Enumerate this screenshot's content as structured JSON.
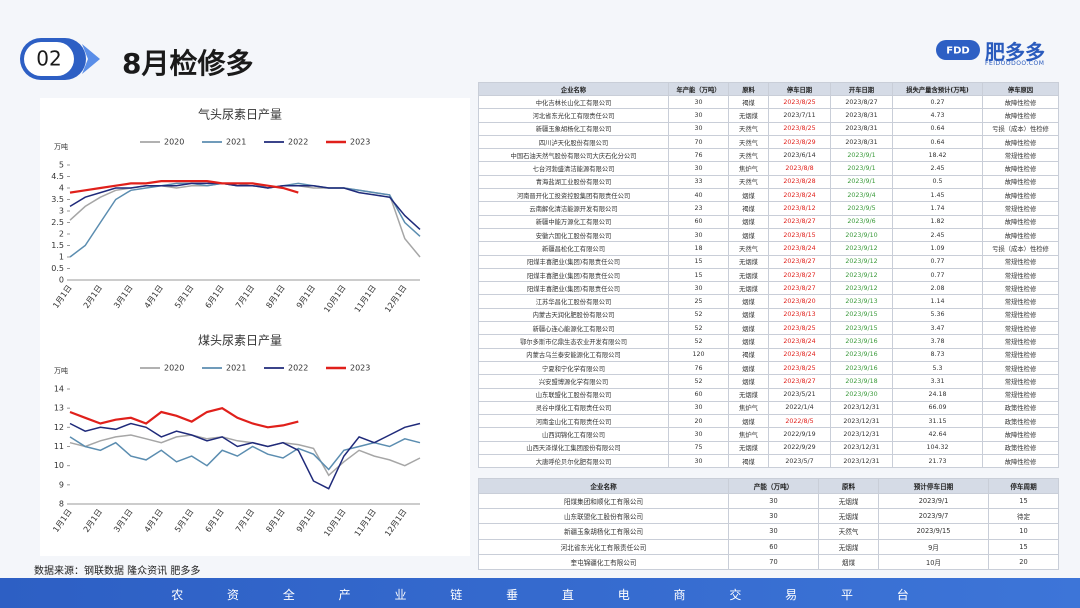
{
  "header": {
    "number": "02",
    "title": "8月检修多",
    "logo": "肥多多",
    "logo_sub": "FEIDOODOO.COM",
    "logo_mark": "FDD"
  },
  "chart_data": [
    {
      "type": "line",
      "title": "气头尿素日产量",
      "ylabel": "万吨",
      "categories": [
        "1月1日",
        null,
        "2月1日",
        null,
        "3月1日",
        null,
        "4月1日",
        null,
        "5月1日",
        null,
        "6月1日",
        null,
        "7月1日",
        null,
        "8月1日",
        null,
        "9月1日",
        null,
        "10月1日",
        null,
        "11月1日",
        null,
        "12月1日",
        null
      ],
      "series": [
        {
          "name": "2020",
          "color": "#a6a6a6",
          "values": [
            2.6,
            3.2,
            3.6,
            3.9,
            4.0,
            4.1,
            4.1,
            4.0,
            4.1,
            4.1,
            4.2,
            4.1,
            4.1,
            4.0,
            4.1,
            4.1,
            4.0,
            4.0,
            4.0,
            3.9,
            3.8,
            3.7,
            1.8,
            1.0
          ]
        },
        {
          "name": "2021",
          "color": "#5b8db0",
          "values": [
            1.0,
            1.5,
            2.5,
            3.5,
            3.9,
            4.0,
            4.1,
            4.2,
            4.2,
            4.1,
            4.2,
            4.1,
            4.2,
            4.0,
            4.1,
            4.2,
            4.1,
            4.0,
            4.0,
            3.9,
            3.8,
            3.7,
            2.5,
            1.9
          ]
        },
        {
          "name": "2022",
          "color": "#1f2a7a",
          "values": [
            3.2,
            3.6,
            3.8,
            4.0,
            4.0,
            4.1,
            4.1,
            4.1,
            4.2,
            4.2,
            4.2,
            4.1,
            4.1,
            4.0,
            4.1,
            4.1,
            4.1,
            4.0,
            4.0,
            3.8,
            3.7,
            3.6,
            2.8,
            2.2
          ]
        },
        {
          "name": "2023",
          "color": "#e0201b",
          "values": [
            3.8,
            3.9,
            4.0,
            4.1,
            4.2,
            4.2,
            4.3,
            4.3,
            4.3,
            4.3,
            4.2,
            4.2,
            4.2,
            4.1,
            4.0,
            3.8,
            null,
            null,
            null,
            null,
            null,
            null,
            null,
            null
          ]
        }
      ],
      "ylim": [
        0,
        5
      ],
      "yticks": [
        0,
        0.5,
        1,
        1.5,
        2,
        2.5,
        3,
        3.5,
        4,
        4.5,
        5
      ]
    },
    {
      "type": "line",
      "title": "煤头尿素日产量",
      "ylabel": "万吨",
      "categories": [
        "1月1日",
        null,
        "2月1日",
        null,
        "3月1日",
        null,
        "4月1日",
        null,
        "5月1日",
        null,
        "6月1日",
        null,
        "7月1日",
        null,
        "8月1日",
        null,
        "9月1日",
        null,
        "10月1日",
        null,
        "11月1日",
        null,
        "12月1日",
        null
      ],
      "series": [
        {
          "name": "2020",
          "color": "#a6a6a6",
          "values": [
            11.2,
            11.0,
            11.3,
            11.5,
            11.6,
            11.4,
            11.2,
            11.5,
            11.6,
            11.4,
            11.5,
            11.3,
            11.2,
            11.0,
            11.2,
            11.1,
            10.9,
            9.5,
            10.2,
            10.8,
            10.5,
            10.3,
            10.0,
            10.4
          ]
        },
        {
          "name": "2021",
          "color": "#5b8db0",
          "values": [
            11.5,
            11.0,
            10.8,
            11.2,
            10.5,
            10.3,
            10.8,
            10.2,
            10.5,
            10.0,
            10.8,
            10.5,
            11.0,
            10.6,
            10.4,
            10.9,
            10.6,
            9.8,
            10.8,
            11.0,
            11.2,
            11.0,
            11.4,
            11.2
          ]
        },
        {
          "name": "2022",
          "color": "#1f2a7a",
          "values": [
            12.2,
            11.8,
            12.0,
            11.9,
            12.2,
            12.0,
            11.5,
            11.8,
            11.6,
            11.3,
            11.5,
            11.0,
            11.2,
            11.0,
            11.2,
            10.8,
            9.2,
            8.8,
            10.5,
            11.5,
            11.2,
            11.6,
            12.0,
            12.2
          ]
        },
        {
          "name": "2023",
          "color": "#e0201b",
          "values": [
            12.8,
            12.5,
            12.2,
            12.4,
            12.5,
            12.2,
            12.8,
            12.6,
            12.3,
            12.8,
            13.0,
            12.5,
            12.2,
            12.0,
            12.1,
            12.3,
            null,
            null,
            null,
            null,
            null,
            null,
            null,
            null
          ]
        }
      ],
      "ylim": [
        8,
        14
      ],
      "yticks": [
        8,
        9,
        10,
        11,
        12,
        13,
        14
      ]
    }
  ],
  "table1": {
    "columns": [
      "企业名称",
      "年产能（万吨）",
      "原料",
      "停车日期",
      "开车日期",
      "损失产量含预计(万吨)",
      "停车原因"
    ],
    "rows": [
      [
        "中化吉林长山化工有限公司",
        "30",
        "褐煤",
        "2023/8/25",
        "2023/8/27",
        "0.27",
        "故障性检修"
      ],
      [
        "河北省东光化工有限责任公司",
        "30",
        "无烟煤",
        "2023/7/11",
        "2023/8/31",
        "4.73",
        "故障性检修"
      ],
      [
        "新疆玉象胡杨化工有限公司",
        "30",
        "天然气",
        "2023/8/25",
        "2023/8/31",
        "0.64",
        "亏损（成本）性检修"
      ],
      [
        "四川泸天化股份有限公司",
        "70",
        "天然气",
        "2023/8/29",
        "2023/8/31",
        "0.64",
        "故障性检修"
      ],
      [
        "中国石油天然气股份有限公司大庆石化分公司",
        "76",
        "天然气",
        "2023/6/14",
        "2023/9/1",
        "18.42",
        "常规性检修"
      ],
      [
        "七台河勃盛清洁能源有限公司",
        "30",
        "焦炉气",
        "2023/8/8",
        "2023/9/1",
        "2.45",
        "故障性检修"
      ],
      [
        "青海盐湖工业股份有限公司",
        "33",
        "天然气",
        "2023/8/28",
        "2023/9/1",
        "0.5",
        "故障性检修"
      ],
      [
        "河南晋开化工投资控股集团有限责任公司",
        "40",
        "烟煤",
        "2023/8/24",
        "2023/9/4",
        "1.45",
        "故障性检修"
      ],
      [
        "云南解化清洁能源开发有限公司",
        "23",
        "褐煤",
        "2023/8/12",
        "2023/9/5",
        "1.74",
        "常规性检修"
      ],
      [
        "新疆中能万源化工有限公司",
        "60",
        "烟煤",
        "2023/8/27",
        "2023/9/6",
        "1.82",
        "故障性检修"
      ],
      [
        "安徽六国化工股份有限公司",
        "30",
        "烟煤",
        "2023/8/15",
        "2023/9/10",
        "2.45",
        "故障性检修"
      ],
      [
        "新疆昌松化工有限公司",
        "18",
        "天然气",
        "2023/8/24",
        "2023/9/12",
        "1.09",
        "亏损（成本）性检修"
      ],
      [
        "阳煤丰喜肥业(集团)有限责任公司",
        "15",
        "无烟煤",
        "2023/8/27",
        "2023/9/12",
        "0.77",
        "常规性检修"
      ],
      [
        "阳煤丰喜肥业(集团)有限责任公司",
        "15",
        "无烟煤",
        "2023/8/27",
        "2023/9/12",
        "0.77",
        "常规性检修"
      ],
      [
        "阳煤丰喜肥业(集团)有限责任公司",
        "30",
        "无烟煤",
        "2023/8/27",
        "2023/9/12",
        "2.08",
        "常规性检修"
      ],
      [
        "江苏华昌化工股份有限公司",
        "25",
        "烟煤",
        "2023/8/20",
        "2023/9/13",
        "1.14",
        "常规性检修"
      ],
      [
        "内蒙古天润化肥股份有限公司",
        "52",
        "烟煤",
        "2023/8/13",
        "2023/9/15",
        "5.36",
        "常规性检修"
      ],
      [
        "新疆心连心能源化工有限公司",
        "52",
        "烟煤",
        "2023/8/25",
        "2023/9/15",
        "3.47",
        "常规性检修"
      ],
      [
        "鄂尔多斯市亿鼎生态农业开发有限公司",
        "52",
        "烟煤",
        "2023/8/24",
        "2023/9/16",
        "3.78",
        "常规性检修"
      ],
      [
        "内蒙古乌兰泰安能源化工有限公司",
        "120",
        "褐煤",
        "2023/8/24",
        "2023/9/16",
        "8.73",
        "常规性检修"
      ],
      [
        "宁夏和宁化学有限公司",
        "76",
        "烟煤",
        "2023/8/25",
        "2023/9/16",
        "5.3",
        "常规性检修"
      ],
      [
        "兴安盟博源化学有限公司",
        "52",
        "烟煤",
        "2023/8/27",
        "2023/9/18",
        "3.31",
        "常规性检修"
      ],
      [
        "山东联盟化工股份有限公司",
        "60",
        "无烟煤",
        "2023/5/21",
        "2023/9/30",
        "24.18",
        "常规性检修"
      ],
      [
        "灵谷中煤化工有限责任公司",
        "30",
        "焦炉气",
        "2022/1/4",
        "2023/12/31",
        "66.09",
        "政策性检修"
      ],
      [
        "河南金山化工有限责任公司",
        "20",
        "烟煤",
        "2022/8/5",
        "2023/12/31",
        "31.15",
        "政策性检修"
      ],
      [
        "山西润锦化工有限公司",
        "30",
        "焦炉气",
        "2022/9/19",
        "2023/12/31",
        "42.64",
        "故障性检修"
      ],
      [
        "山西天泽煤化工集团股份有限公司",
        "75",
        "无烟煤",
        "2022/9/29",
        "2023/12/31",
        "104.32",
        "政策性检修"
      ],
      [
        "大唐呼伦贝尔化肥有限公司",
        "30",
        "褐煤",
        "2023/5/7",
        "2023/12/31",
        "21.73",
        "故障性检修"
      ]
    ]
  },
  "table2": {
    "columns": [
      "企业名称",
      "产能（万吨）",
      "原料",
      "预计停车日期",
      "停车周期"
    ],
    "rows": [
      [
        "阳煤集团和顺化工有限公司",
        "30",
        "无烟煤",
        "2023/9/1",
        "15"
      ],
      [
        "山东联盟化工股份有限公司",
        "30",
        "无烟煤",
        "2023/9/7",
        "待定"
      ],
      [
        "新疆玉象胡杨化工有限公司",
        "30",
        "天然气",
        "2023/9/15",
        "10"
      ],
      [
        "河北省东光化工有限责任公司",
        "60",
        "无烟煤",
        "9月",
        "15"
      ],
      [
        "奎屯锦疆化工有限公司",
        "70",
        "烟煤",
        "10月",
        "20"
      ]
    ]
  },
  "source": "数据来源：钢联数据  隆众资讯  肥多多",
  "footer": "农 资 全 产 业 链 垂 直 电 商 交 易 平 台"
}
